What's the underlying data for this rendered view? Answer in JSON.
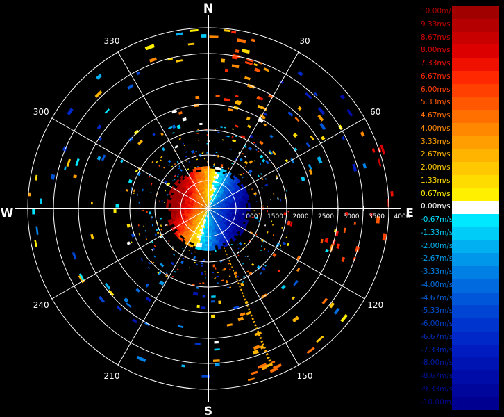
{
  "compass": {
    "north": "N",
    "south": "S",
    "east": "E",
    "west": "W"
  },
  "azimuth_labels": [
    {
      "deg": 30,
      "text": "30"
    },
    {
      "deg": 60,
      "text": "60"
    },
    {
      "deg": 120,
      "text": "120"
    },
    {
      "deg": 150,
      "text": "150"
    },
    {
      "deg": 210,
      "text": "210"
    },
    {
      "deg": 240,
      "text": "240"
    },
    {
      "deg": 300,
      "text": "300"
    },
    {
      "deg": 330,
      "text": "330"
    }
  ],
  "range_labels": [
    {
      "km": 1000,
      "text": "1000"
    },
    {
      "km": 1500,
      "text": "1500"
    },
    {
      "km": 2000,
      "text": "2000"
    },
    {
      "km": 2500,
      "text": "2500"
    },
    {
      "km": 3000,
      "text": "3000"
    },
    {
      "km": 3500,
      "text": "3500"
    },
    {
      "km": 4000,
      "text": "4000"
    }
  ],
  "legend": [
    {
      "label": "10.00m/s",
      "color": "#a00000",
      "text_color": "#b00000"
    },
    {
      "label": "9.33m/s",
      "color": "#b40000",
      "text_color": "#c00000"
    },
    {
      "label": "8.67m/s",
      "color": "#c80000",
      "text_color": "#d00000"
    },
    {
      "label": "8.00m/s",
      "color": "#dc0000",
      "text_color": "#e00000"
    },
    {
      "label": "7.33m/s",
      "color": "#f01000",
      "text_color": "#ef1000"
    },
    {
      "label": "6.67m/s",
      "color": "#ff2800",
      "text_color": "#ff2800"
    },
    {
      "label": "6.00m/s",
      "color": "#ff4000",
      "text_color": "#ff4000"
    },
    {
      "label": "5.33m/s",
      "color": "#ff5800",
      "text_color": "#ff5a00"
    },
    {
      "label": "4.67m/s",
      "color": "#ff7000",
      "text_color": "#ff7000"
    },
    {
      "label": "4.00m/s",
      "color": "#ff8800",
      "text_color": "#ff8800"
    },
    {
      "label": "3.33m/s",
      "color": "#ff9e00",
      "text_color": "#ff9e00"
    },
    {
      "label": "2.67m/s",
      "color": "#ffb400",
      "text_color": "#ffb400"
    },
    {
      "label": "2.00m/s",
      "color": "#ffc800",
      "text_color": "#ffc800"
    },
    {
      "label": "1.33m/s",
      "color": "#ffdc00",
      "text_color": "#ffdc00"
    },
    {
      "label": "0.67m/s",
      "color": "#fff000",
      "text_color": "#fff000"
    },
    {
      "label": "0.00m/s",
      "color": "#ffffff",
      "text_color": "#ffffff"
    },
    {
      "label": "-0.67m/s",
      "color": "#00e8ff",
      "text_color": "#00e0ff"
    },
    {
      "label": "-1.33m/s",
      "color": "#00ccf8",
      "text_color": "#00c8f4"
    },
    {
      "label": "-2.00m/s",
      "color": "#00b0f0",
      "text_color": "#00b0f0"
    },
    {
      "label": "-2.67m/s",
      "color": "#0096ea",
      "text_color": "#0098ea"
    },
    {
      "label": "-3.33m/s",
      "color": "#0080e4",
      "text_color": "#0080e4"
    },
    {
      "label": "-4.00m/s",
      "color": "#006ade",
      "text_color": "#0070e0"
    },
    {
      "label": "-4.67m/s",
      "color": "#0056d8",
      "text_color": "#0060da"
    },
    {
      "label": "-5.33m/s",
      "color": "#0044d4",
      "text_color": "#0050d4"
    },
    {
      "label": "-6.00m/s",
      "color": "#0034cf",
      "text_color": "#0040cc"
    },
    {
      "label": "-6.67m/s",
      "color": "#0028c8",
      "text_color": "#0030c0"
    },
    {
      "label": "-7.33m/s",
      "color": "#001cc0",
      "text_color": "#0024b4"
    },
    {
      "label": "-8.00m/s",
      "color": "#0014b4",
      "text_color": "#001ca8"
    },
    {
      "label": "-8.67m/s",
      "color": "#000ca8",
      "text_color": "#00149c"
    },
    {
      "label": "-9.33m/s",
      "color": "#00069c",
      "text_color": "#000c90"
    },
    {
      "label": "-10.00m/s",
      "color": "#000090",
      "text_color": "#000890"
    }
  ]
}
